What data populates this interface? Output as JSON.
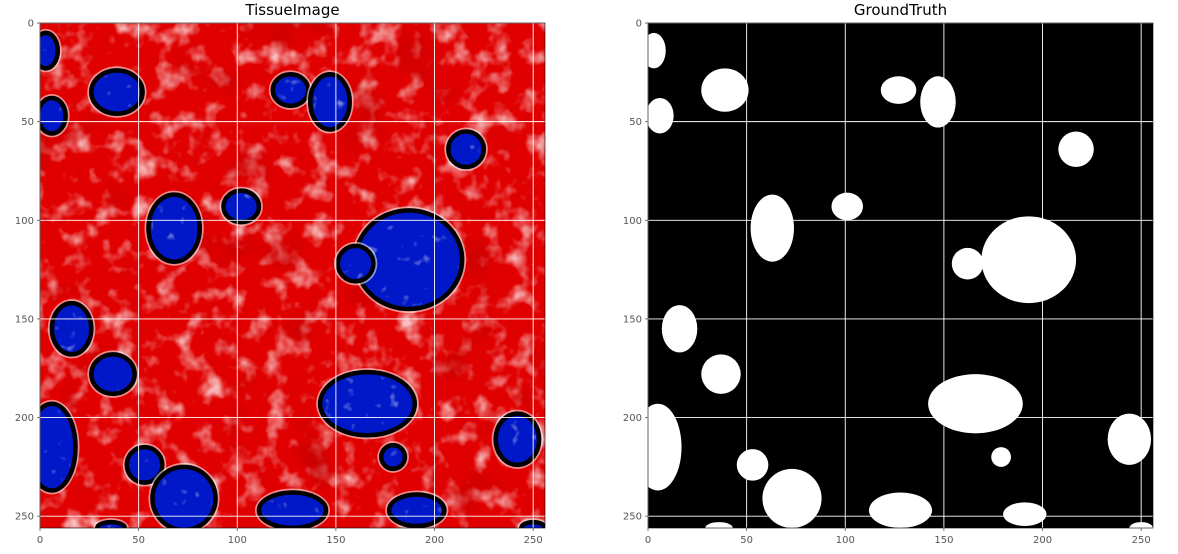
{
  "chart_data": [
    {
      "type": "heatmap",
      "title": "TissueImage",
      "xlim": [
        0,
        256
      ],
      "ylim": [
        256,
        0
      ],
      "xticks": [
        0,
        50,
        100,
        150,
        200,
        250
      ],
      "yticks": [
        0,
        50,
        100,
        150,
        200,
        250
      ],
      "grid": true,
      "colormap": "seismic",
      "background_color": "#e00000",
      "nucleus_color": "#0018c8",
      "outline_color": "#000000",
      "regions": [
        {
          "cx": 3,
          "cy": 14,
          "rx": 6,
          "ry": 9
        },
        {
          "cx": 39,
          "cy": 35,
          "rx": 13,
          "ry": 11
        },
        {
          "cx": 6,
          "cy": 47,
          "rx": 7,
          "ry": 9
        },
        {
          "cx": 127,
          "cy": 34,
          "rx": 9,
          "ry": 8
        },
        {
          "cx": 147,
          "cy": 40,
          "rx": 10,
          "ry": 14
        },
        {
          "cx": 216,
          "cy": 64,
          "rx": 9,
          "ry": 9
        },
        {
          "cx": 68,
          "cy": 104,
          "rx": 13,
          "ry": 17
        },
        {
          "cx": 102,
          "cy": 93,
          "rx": 9,
          "ry": 8
        },
        {
          "cx": 187,
          "cy": 120,
          "rx": 27,
          "ry": 25
        },
        {
          "cx": 160,
          "cy": 122,
          "rx": 9,
          "ry": 9
        },
        {
          "cx": 16,
          "cy": 155,
          "rx": 10,
          "ry": 13
        },
        {
          "cx": 37,
          "cy": 178,
          "rx": 11,
          "ry": 10
        },
        {
          "cx": 166,
          "cy": 193,
          "rx": 24,
          "ry": 16
        },
        {
          "cx": 179,
          "cy": 220,
          "rx": 6,
          "ry": 6
        },
        {
          "cx": 6,
          "cy": 215,
          "rx": 12,
          "ry": 22
        },
        {
          "cx": 242,
          "cy": 211,
          "rx": 11,
          "ry": 13
        },
        {
          "cx": 53,
          "cy": 224,
          "rx": 9,
          "ry": 9
        },
        {
          "cx": 73,
          "cy": 241,
          "rx": 16,
          "ry": 16
        },
        {
          "cx": 128,
          "cy": 247,
          "rx": 17,
          "ry": 9
        },
        {
          "cx": 191,
          "cy": 247,
          "rx": 14,
          "ry": 8
        },
        {
          "cx": 36,
          "cy": 256,
          "rx": 7,
          "ry": 3
        },
        {
          "cx": 250,
          "cy": 256,
          "rx": 6,
          "ry": 3
        }
      ]
    },
    {
      "type": "heatmap",
      "title": "GroundTruth",
      "xlim": [
        0,
        256
      ],
      "ylim": [
        256,
        0
      ],
      "xticks": [
        0,
        50,
        100,
        150,
        200,
        250
      ],
      "yticks": [
        0,
        50,
        100,
        150,
        200,
        250
      ],
      "grid": true,
      "colormap": "gray",
      "background_color": "#000000",
      "mask_color": "#ffffff",
      "regions": [
        {
          "cx": 3,
          "cy": 14,
          "rx": 6,
          "ry": 9
        },
        {
          "cx": 39,
          "cy": 34,
          "rx": 12,
          "ry": 11
        },
        {
          "cx": 6,
          "cy": 47,
          "rx": 7,
          "ry": 9
        },
        {
          "cx": 127,
          "cy": 34,
          "rx": 9,
          "ry": 7
        },
        {
          "cx": 147,
          "cy": 40,
          "rx": 9,
          "ry": 13
        },
        {
          "cx": 217,
          "cy": 64,
          "rx": 9,
          "ry": 9
        },
        {
          "cx": 63,
          "cy": 104,
          "rx": 11,
          "ry": 17
        },
        {
          "cx": 101,
          "cy": 93,
          "rx": 8,
          "ry": 7
        },
        {
          "cx": 193,
          "cy": 120,
          "rx": 24,
          "ry": 22
        },
        {
          "cx": 162,
          "cy": 122,
          "rx": 8,
          "ry": 8
        },
        {
          "cx": 16,
          "cy": 155,
          "rx": 9,
          "ry": 12
        },
        {
          "cx": 37,
          "cy": 178,
          "rx": 10,
          "ry": 10
        },
        {
          "cx": 166,
          "cy": 193,
          "rx": 24,
          "ry": 15
        },
        {
          "cx": 179,
          "cy": 220,
          "rx": 5,
          "ry": 5
        },
        {
          "cx": 5,
          "cy": 215,
          "rx": 12,
          "ry": 22
        },
        {
          "cx": 244,
          "cy": 211,
          "rx": 11,
          "ry": 13
        },
        {
          "cx": 53,
          "cy": 224,
          "rx": 8,
          "ry": 8
        },
        {
          "cx": 73,
          "cy": 241,
          "rx": 15,
          "ry": 15
        },
        {
          "cx": 128,
          "cy": 247,
          "rx": 16,
          "ry": 9
        },
        {
          "cx": 191,
          "cy": 249,
          "rx": 11,
          "ry": 6
        },
        {
          "cx": 36,
          "cy": 256,
          "rx": 7,
          "ry": 3
        },
        {
          "cx": 250,
          "cy": 256,
          "rx": 6,
          "ry": 3
        }
      ]
    }
  ]
}
